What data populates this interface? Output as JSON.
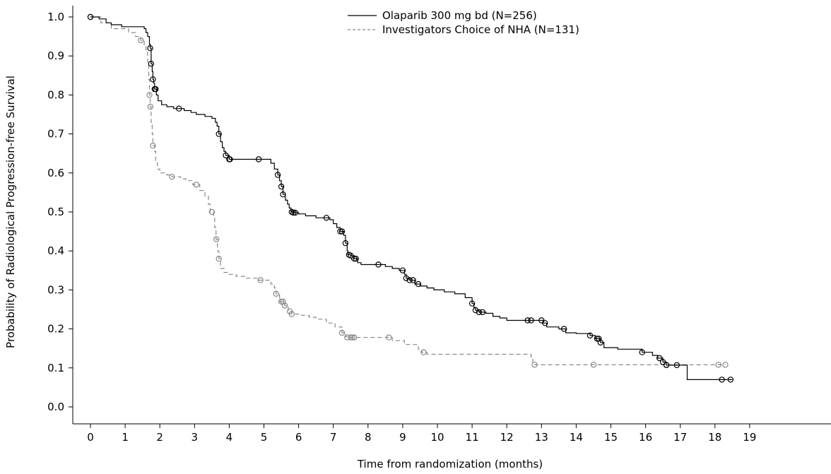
{
  "chart_data": {
    "type": "line",
    "subtype": "kaplan-meier",
    "title": "",
    "xlabel": "Time from randomization (months)",
    "ylabel": "Probability of Radiological Progression-free Survival",
    "xlim": [
      0,
      21
    ],
    "ylim": [
      0,
      1
    ],
    "x_ticks": [
      0,
      1,
      2,
      3,
      4,
      5,
      6,
      7,
      8,
      9,
      10,
      11,
      12,
      13,
      14,
      15,
      16,
      17,
      18,
      19
    ],
    "y_ticks": [
      0.0,
      0.1,
      0.2,
      0.3,
      0.4,
      0.5,
      0.6,
      0.7,
      0.8,
      0.9,
      1.0
    ],
    "y_tick_labels": [
      "0.0",
      "0.1",
      "0.2",
      "0.3",
      "0.4",
      "0.5",
      "0.6",
      "0.7",
      "0.8",
      "0.9",
      "1.0"
    ],
    "grid": false,
    "legend_position": "top-center",
    "series": [
      {
        "name": "Olaparib 300 mg bd (N=256)",
        "color": "#000000",
        "line_style": "solid",
        "steps": [
          [
            0,
            1.0
          ],
          [
            0.25,
            0.995
          ],
          [
            0.45,
            0.985
          ],
          [
            0.6,
            0.98
          ],
          [
            0.9,
            0.975
          ],
          [
            1.2,
            0.975
          ],
          [
            1.55,
            0.97
          ],
          [
            1.6,
            0.96
          ],
          [
            1.65,
            0.95
          ],
          [
            1.7,
            0.93
          ],
          [
            1.72,
            0.92
          ],
          [
            1.75,
            0.88
          ],
          [
            1.78,
            0.86
          ],
          [
            1.8,
            0.84
          ],
          [
            1.82,
            0.83
          ],
          [
            1.85,
            0.815
          ],
          [
            1.9,
            0.8
          ],
          [
            1.95,
            0.785
          ],
          [
            2.05,
            0.775
          ],
          [
            2.2,
            0.77
          ],
          [
            2.4,
            0.765
          ],
          [
            2.6,
            0.765
          ],
          [
            2.7,
            0.76
          ],
          [
            2.9,
            0.755
          ],
          [
            3.05,
            0.75
          ],
          [
            3.3,
            0.745
          ],
          [
            3.5,
            0.74
          ],
          [
            3.6,
            0.73
          ],
          [
            3.65,
            0.72
          ],
          [
            3.7,
            0.7
          ],
          [
            3.75,
            0.68
          ],
          [
            3.8,
            0.665
          ],
          [
            3.85,
            0.655
          ],
          [
            3.9,
            0.645
          ],
          [
            4.0,
            0.635
          ],
          [
            4.2,
            0.635
          ],
          [
            4.9,
            0.635
          ],
          [
            5.2,
            0.625
          ],
          [
            5.3,
            0.61
          ],
          [
            5.4,
            0.595
          ],
          [
            5.45,
            0.58
          ],
          [
            5.5,
            0.565
          ],
          [
            5.55,
            0.545
          ],
          [
            5.62,
            0.53
          ],
          [
            5.68,
            0.52
          ],
          [
            5.73,
            0.51
          ],
          [
            5.78,
            0.5
          ],
          [
            5.85,
            0.498
          ],
          [
            6.0,
            0.495
          ],
          [
            6.2,
            0.49
          ],
          [
            6.5,
            0.485
          ],
          [
            6.9,
            0.48
          ],
          [
            7.0,
            0.47
          ],
          [
            7.1,
            0.46
          ],
          [
            7.2,
            0.45
          ],
          [
            7.3,
            0.44
          ],
          [
            7.35,
            0.42
          ],
          [
            7.4,
            0.4
          ],
          [
            7.42,
            0.39
          ],
          [
            7.5,
            0.388
          ],
          [
            7.6,
            0.38
          ],
          [
            7.7,
            0.37
          ],
          [
            7.8,
            0.365
          ],
          [
            8.2,
            0.365
          ],
          [
            8.5,
            0.36
          ],
          [
            8.7,
            0.355
          ],
          [
            8.9,
            0.35
          ],
          [
            9.05,
            0.34
          ],
          [
            9.1,
            0.33
          ],
          [
            9.2,
            0.325
          ],
          [
            9.35,
            0.315
          ],
          [
            9.5,
            0.31
          ],
          [
            9.7,
            0.305
          ],
          [
            9.9,
            0.3
          ],
          [
            10.2,
            0.295
          ],
          [
            10.5,
            0.29
          ],
          [
            10.8,
            0.28
          ],
          [
            11.0,
            0.265
          ],
          [
            11.05,
            0.255
          ],
          [
            11.1,
            0.248
          ],
          [
            11.2,
            0.243
          ],
          [
            11.4,
            0.24
          ],
          [
            11.6,
            0.232
          ],
          [
            11.8,
            0.228
          ],
          [
            12.0,
            0.222
          ],
          [
            12.6,
            0.222
          ],
          [
            13.05,
            0.215
          ],
          [
            13.15,
            0.205
          ],
          [
            13.5,
            0.2
          ],
          [
            13.7,
            0.19
          ],
          [
            14.0,
            0.188
          ],
          [
            14.4,
            0.183
          ],
          [
            14.55,
            0.175
          ],
          [
            14.7,
            0.165
          ],
          [
            14.8,
            0.152
          ],
          [
            15.2,
            0.148
          ],
          [
            15.9,
            0.14
          ],
          [
            16.2,
            0.132
          ],
          [
            16.35,
            0.125
          ],
          [
            16.5,
            0.115
          ],
          [
            16.6,
            0.107
          ],
          [
            17.2,
            0.104
          ],
          [
            17.2,
            0.07
          ],
          [
            18.5,
            0.07
          ]
        ],
        "censor_times": [
          0,
          1.72,
          1.75,
          1.8,
          1.85,
          1.88,
          2.55,
          3.7,
          3.9,
          4.0,
          4.02,
          4.85,
          5.4,
          5.5,
          5.55,
          5.8,
          5.85,
          5.9,
          6.8,
          7.2,
          7.25,
          7.35,
          7.45,
          7.5,
          7.6,
          7.65,
          8.3,
          9.0,
          9.1,
          9.2,
          9.3,
          9.45,
          11.0,
          11.1,
          11.2,
          11.3,
          12.6,
          12.7,
          13.0,
          13.1,
          13.65,
          14.4,
          14.6,
          14.65,
          14.7,
          15.9,
          16.4,
          16.5,
          16.6,
          16.9,
          18.2,
          18.45
        ]
      },
      {
        "name": "Investigators Choice of NHA (N=131)",
        "color": "#888888",
        "line_style": "dashed",
        "steps": [
          [
            0,
            1.0
          ],
          [
            0.3,
            0.985
          ],
          [
            0.6,
            0.97
          ],
          [
            1.1,
            0.96
          ],
          [
            1.3,
            0.95
          ],
          [
            1.45,
            0.94
          ],
          [
            1.55,
            0.925
          ],
          [
            1.6,
            0.91
          ],
          [
            1.65,
            0.88
          ],
          [
            1.68,
            0.84
          ],
          [
            1.7,
            0.8
          ],
          [
            1.72,
            0.77
          ],
          [
            1.75,
            0.73
          ],
          [
            1.78,
            0.7
          ],
          [
            1.8,
            0.67
          ],
          [
            1.85,
            0.655
          ],
          [
            1.88,
            0.63
          ],
          [
            1.93,
            0.61
          ],
          [
            2.0,
            0.6
          ],
          [
            2.2,
            0.595
          ],
          [
            2.35,
            0.59
          ],
          [
            2.6,
            0.585
          ],
          [
            2.75,
            0.58
          ],
          [
            2.95,
            0.57
          ],
          [
            3.15,
            0.555
          ],
          [
            3.3,
            0.54
          ],
          [
            3.4,
            0.52
          ],
          [
            3.45,
            0.5
          ],
          [
            3.55,
            0.49
          ],
          [
            3.58,
            0.46
          ],
          [
            3.62,
            0.43
          ],
          [
            3.66,
            0.4
          ],
          [
            3.7,
            0.38
          ],
          [
            3.75,
            0.355
          ],
          [
            3.85,
            0.345
          ],
          [
            3.95,
            0.34
          ],
          [
            4.2,
            0.335
          ],
          [
            4.5,
            0.33
          ],
          [
            4.8,
            0.325
          ],
          [
            5.2,
            0.315
          ],
          [
            5.3,
            0.305
          ],
          [
            5.35,
            0.29
          ],
          [
            5.45,
            0.27
          ],
          [
            5.6,
            0.26
          ],
          [
            5.7,
            0.245
          ],
          [
            5.8,
            0.238
          ],
          [
            6.0,
            0.235
          ],
          [
            6.3,
            0.23
          ],
          [
            6.5,
            0.225
          ],
          [
            6.8,
            0.215
          ],
          [
            7.05,
            0.205
          ],
          [
            7.25,
            0.19
          ],
          [
            7.35,
            0.18
          ],
          [
            7.4,
            0.178
          ],
          [
            7.7,
            0.178
          ],
          [
            8.7,
            0.17
          ],
          [
            9.05,
            0.16
          ],
          [
            9.45,
            0.148
          ],
          [
            9.55,
            0.14
          ],
          [
            9.7,
            0.135
          ],
          [
            12.7,
            0.125
          ],
          [
            12.75,
            0.108
          ],
          [
            18.3,
            0.108
          ]
        ],
        "censor_times": [
          0,
          1.45,
          1.7,
          1.73,
          1.8,
          2.35,
          3.05,
          3.5,
          3.63,
          3.7,
          4.9,
          5.35,
          5.5,
          5.55,
          5.6,
          5.75,
          5.8,
          7.25,
          7.4,
          7.5,
          7.55,
          7.6,
          8.6,
          9.6,
          12.8,
          14.5,
          16.6,
          18.1,
          18.3
        ]
      }
    ]
  }
}
